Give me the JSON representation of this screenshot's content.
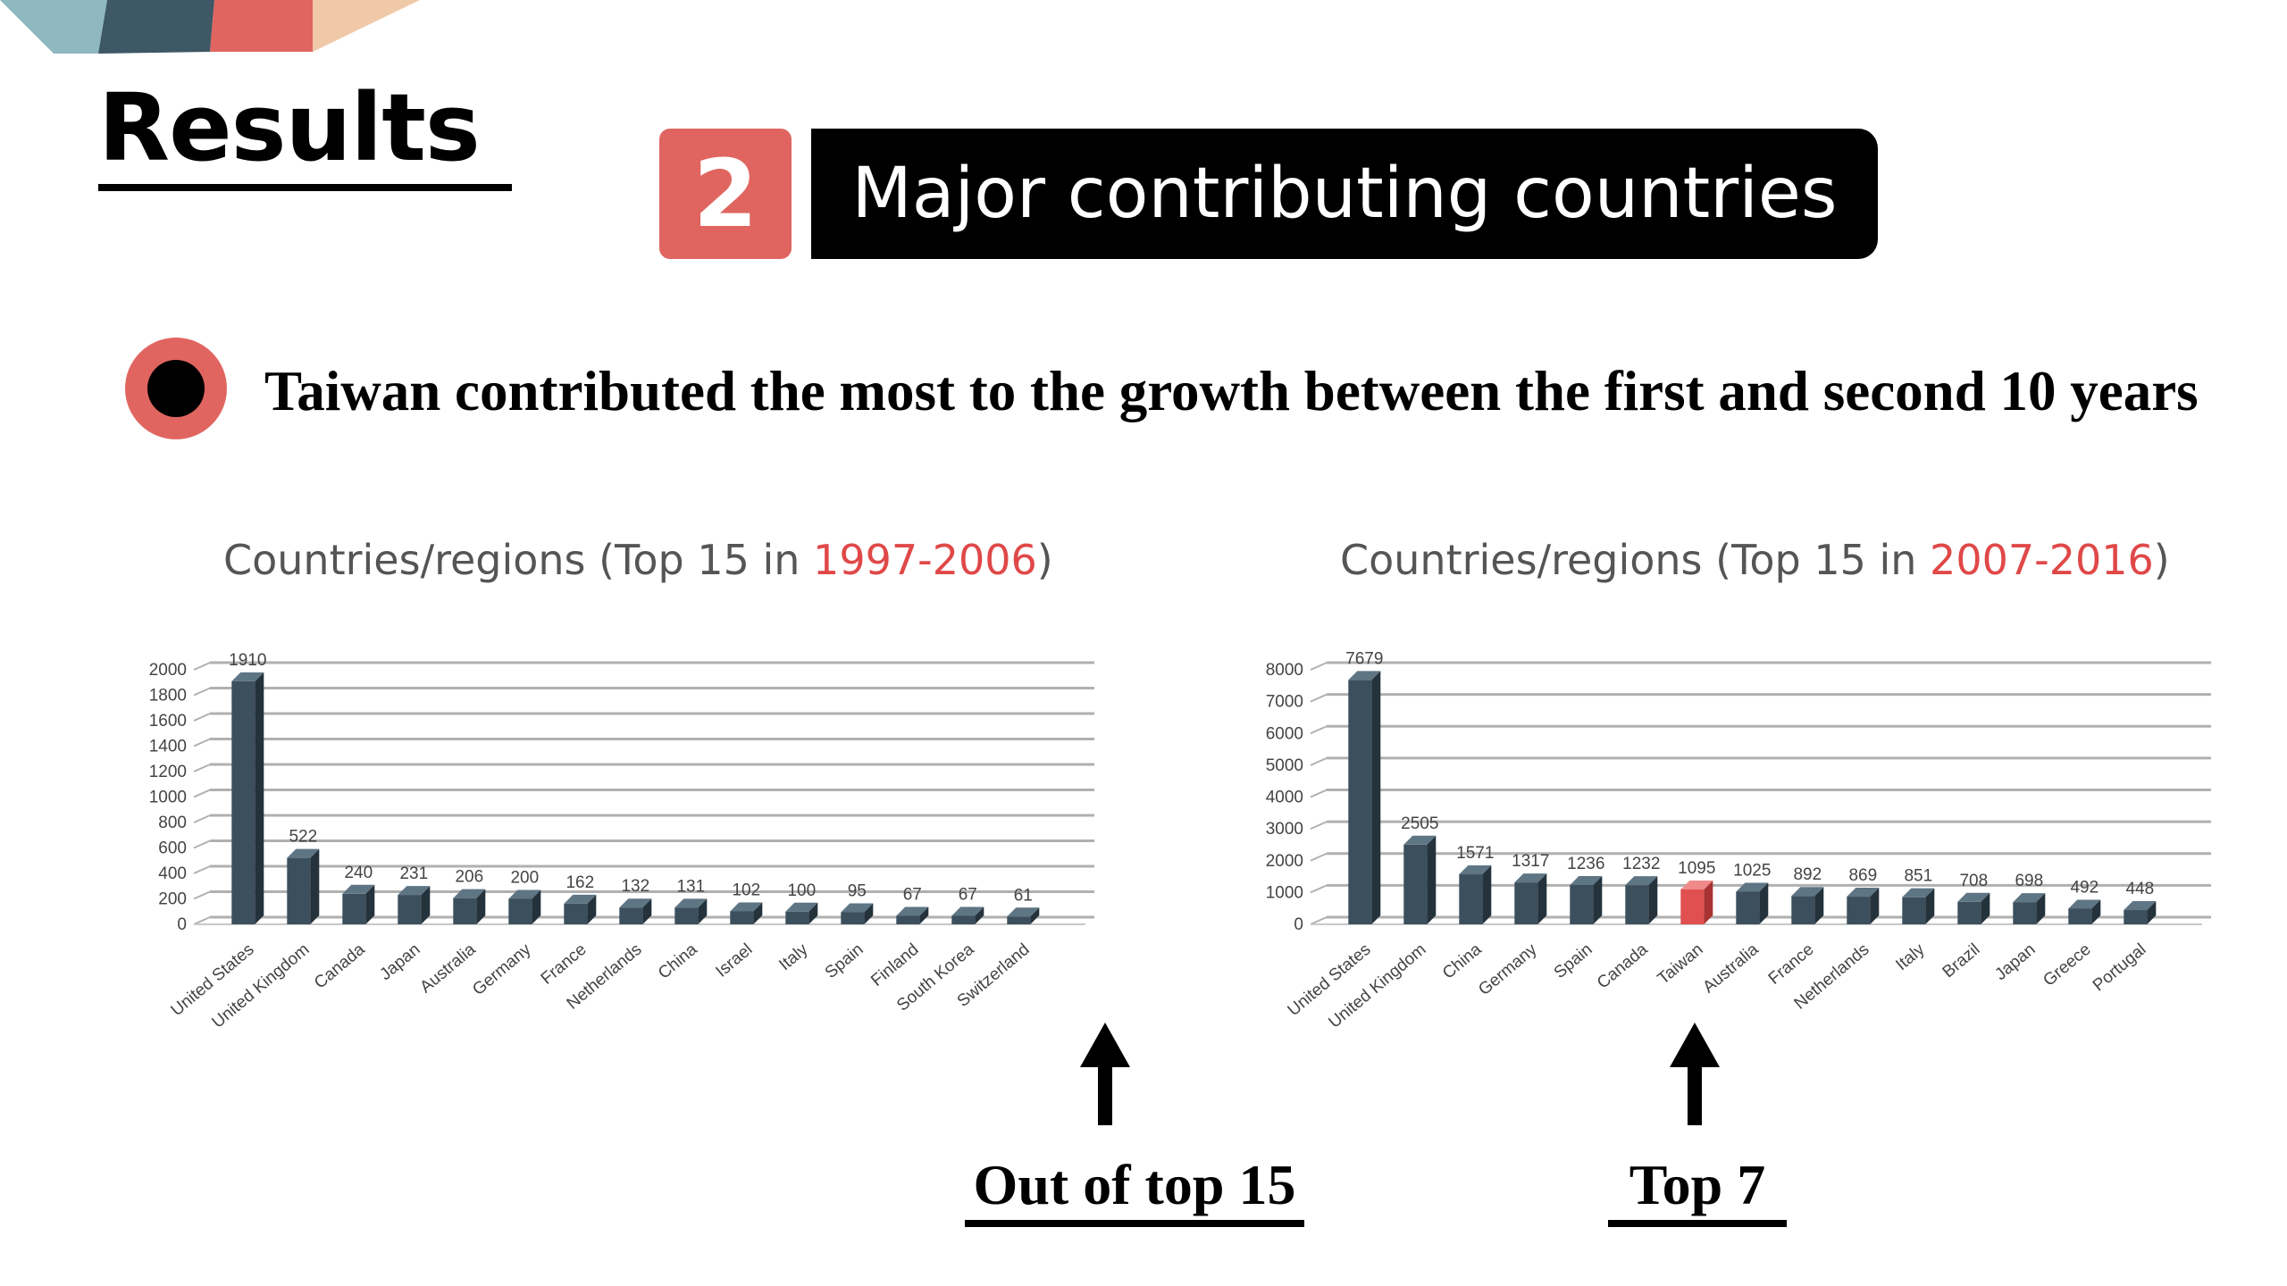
{
  "header": {
    "title": "Results",
    "section_number": "2",
    "section_title": "Major contributing countries"
  },
  "statement": "Taiwan contributed the most to the growth between the first and second 10 years",
  "callouts": {
    "left": "Out of top 15",
    "right": "Top 7"
  },
  "colors": {
    "accent": "#e06560",
    "bar": "#3c4f5d",
    "bar_highlight": "#e05050",
    "title_highlight": "#e04848"
  },
  "chart_data": [
    {
      "type": "bar",
      "title_prefix": "Countries/regions (Top 15 in ",
      "title_period": "1997-2006",
      "title_suffix": ")",
      "categories": [
        "United States",
        "United Kingdom",
        "Canada",
        "Japan",
        "Australia",
        "Germany",
        "France",
        "Netherlands",
        "China",
        "Israel",
        "Italy",
        "Spain",
        "Finland",
        "South Korea",
        "Switzerland"
      ],
      "values": [
        1910,
        522,
        240,
        231,
        206,
        200,
        162,
        132,
        131,
        102,
        100,
        95,
        67,
        67,
        61
      ],
      "ylim": [
        0,
        2000
      ],
      "yticks": [
        0,
        200,
        400,
        600,
        800,
        1000,
        1200,
        1400,
        1600,
        1800,
        2000
      ],
      "highlight": null
    },
    {
      "type": "bar",
      "title_prefix": "Countries/regions (Top 15 in ",
      "title_period": "2007-2016",
      "title_suffix": ")",
      "categories": [
        "United States",
        "United Kingdom",
        "China",
        "Germany",
        "Spain",
        "Canada",
        "Taiwan",
        "Australia",
        "France",
        "Netherlands",
        "Italy",
        "Brazil",
        "Japan",
        "Greece",
        "Portugal"
      ],
      "values": [
        7679,
        2505,
        1571,
        1317,
        1236,
        1232,
        1095,
        1025,
        892,
        869,
        851,
        708,
        698,
        492,
        448
      ],
      "ylim": [
        0,
        8000
      ],
      "yticks": [
        0,
        1000,
        2000,
        3000,
        4000,
        5000,
        6000,
        7000,
        8000
      ],
      "highlight": "Taiwan"
    }
  ]
}
